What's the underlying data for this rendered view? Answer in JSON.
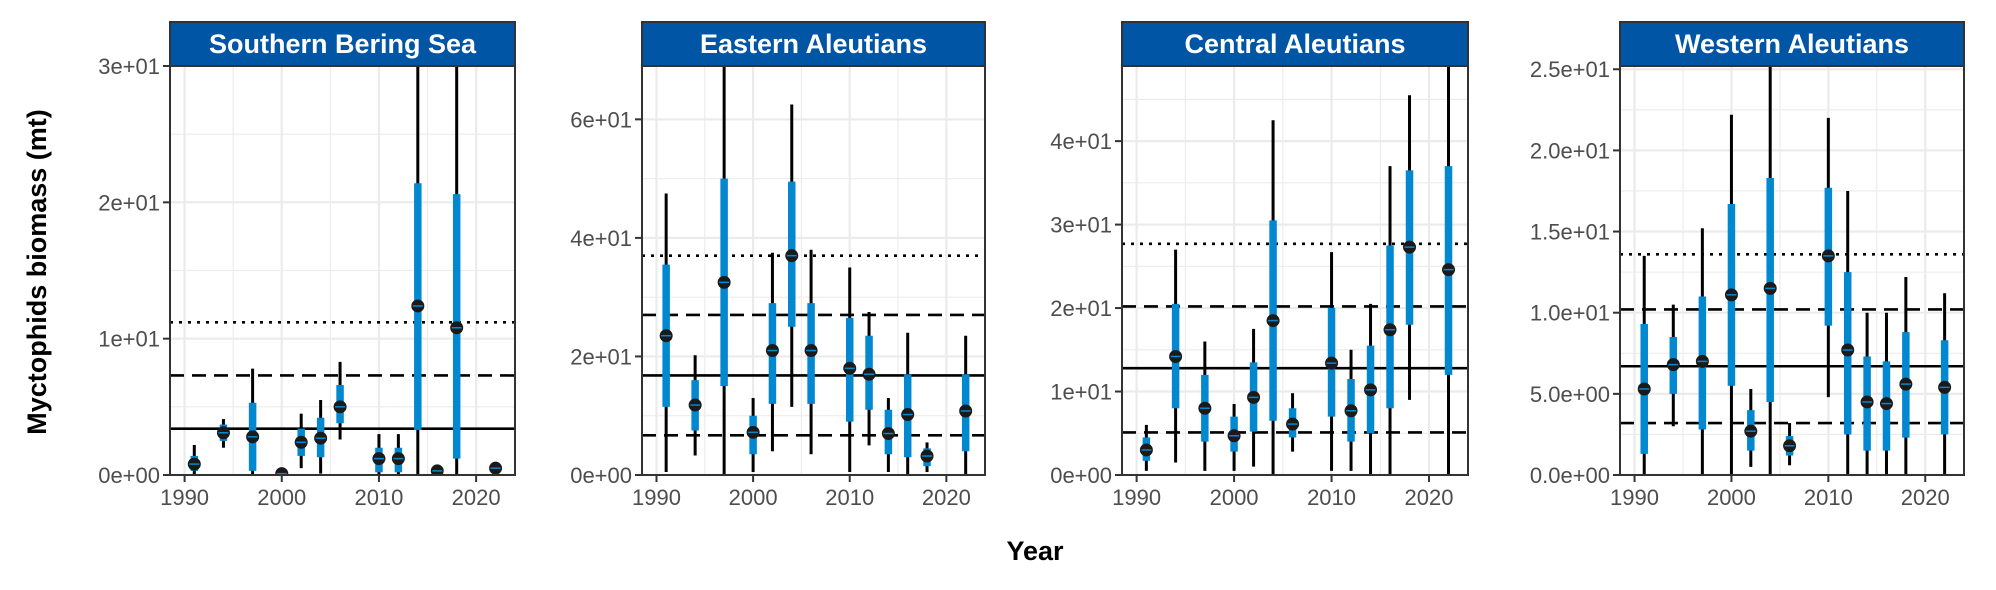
{
  "figure": {
    "ylabel": "Myctophids biomass (mt)",
    "xlabel": "Year"
  },
  "colors": {
    "strip_bg": "#0055A4",
    "strip_text": "#ffffff",
    "inner_interval": "#0288D1",
    "outer_interval": "#000000",
    "point": "#1a1a1a",
    "grid": "#EBEBEB",
    "panel_border": "#333333"
  },
  "chart_data": [
    {
      "type": "scatter",
      "title": "Southern Bering Sea",
      "xlim": [
        1988.5,
        2024
      ],
      "ylim": [
        0,
        30
      ],
      "xticks": [
        1990,
        2000,
        2010,
        2020
      ],
      "xtick_labels": [
        "1990",
        "2000",
        "2010",
        "2020"
      ],
      "yticks": [
        0,
        10,
        20,
        30
      ],
      "ytick_labels": [
        "0e+00",
        "1e+01",
        "2e+01",
        "3e+01"
      ],
      "hlines": {
        "solid": 3.4,
        "dashed": 7.3,
        "dotted": 11.2
      },
      "points": [
        {
          "year": 1991,
          "value": 0.8,
          "inner": [
            0.3,
            1.4
          ],
          "outer": [
            0.0,
            2.2
          ]
        },
        {
          "year": 1994,
          "value": 3.1,
          "inner": [
            2.5,
            3.7
          ],
          "outer": [
            2.0,
            4.1
          ]
        },
        {
          "year": 1997,
          "value": 2.8,
          "inner": [
            0.3,
            5.3
          ],
          "outer": [
            0.0,
            7.8
          ]
        },
        {
          "year": 2000,
          "value": 0.1,
          "inner": [
            0.0,
            0.2
          ],
          "outer": [
            0.0,
            0.3
          ]
        },
        {
          "year": 2002,
          "value": 2.4,
          "inner": [
            1.4,
            3.4
          ],
          "outer": [
            0.5,
            4.5
          ]
        },
        {
          "year": 2004,
          "value": 2.7,
          "inner": [
            1.3,
            4.2
          ],
          "outer": [
            0.1,
            5.5
          ]
        },
        {
          "year": 2006,
          "value": 5.0,
          "inner": [
            3.8,
            6.6
          ],
          "outer": [
            2.6,
            8.3
          ]
        },
        {
          "year": 2010,
          "value": 1.2,
          "inner": [
            0.2,
            2.0
          ],
          "outer": [
            0.0,
            3.0
          ]
        },
        {
          "year": 2012,
          "value": 1.2,
          "inner": [
            0.2,
            2.0
          ],
          "outer": [
            0.0,
            3.0
          ]
        },
        {
          "year": 2014,
          "value": 12.4,
          "inner": [
            3.3,
            21.4
          ],
          "outer": [
            0.0,
            30.0
          ]
        },
        {
          "year": 2016,
          "value": 0.3,
          "inner": [
            0.1,
            0.5
          ],
          "outer": [
            0.0,
            0.6
          ]
        },
        {
          "year": 2018,
          "value": 10.8,
          "inner": [
            1.2,
            20.6
          ],
          "outer": [
            0.0,
            30.0
          ]
        },
        {
          "year": 2022,
          "value": 0.5,
          "inner": [
            0.3,
            0.7
          ],
          "outer": [
            0.2,
            0.8
          ]
        }
      ]
    },
    {
      "type": "scatter",
      "title": "Eastern Aleutians",
      "xlim": [
        1988.5,
        2024
      ],
      "ylim": [
        0,
        69
      ],
      "xticks": [
        1990,
        2000,
        2010,
        2020
      ],
      "xtick_labels": [
        "1990",
        "2000",
        "2010",
        "2020"
      ],
      "yticks": [
        0,
        20,
        40,
        60
      ],
      "ytick_labels": [
        "0e+00",
        "2e+01",
        "4e+01",
        "6e+01"
      ],
      "hlines": {
        "solid": 16.8,
        "dashed_high": 27.0,
        "dashed_low": 6.7,
        "dotted": 37.0
      },
      "points": [
        {
          "year": 1991,
          "value": 23.5,
          "inner": [
            11.5,
            35.5
          ],
          "outer": [
            0.5,
            47.5
          ]
        },
        {
          "year": 1994,
          "value": 11.8,
          "inner": [
            7.5,
            16.0
          ],
          "outer": [
            3.3,
            20.2
          ]
        },
        {
          "year": 1997,
          "value": 32.5,
          "inner": [
            15.0,
            50.0
          ],
          "outer": [
            0.0,
            69.0
          ]
        },
        {
          "year": 2000,
          "value": 7.2,
          "inner": [
            3.5,
            10.0
          ],
          "outer": [
            0.5,
            13.0
          ]
        },
        {
          "year": 2002,
          "value": 21.0,
          "inner": [
            12.0,
            29.0
          ],
          "outer": [
            4.0,
            37.5
          ]
        },
        {
          "year": 2004,
          "value": 37.0,
          "inner": [
            25.0,
            49.5
          ],
          "outer": [
            11.5,
            62.5
          ]
        },
        {
          "year": 2006,
          "value": 21.0,
          "inner": [
            12.0,
            29.0
          ],
          "outer": [
            3.5,
            38.0
          ]
        },
        {
          "year": 2010,
          "value": 18.0,
          "inner": [
            9.0,
            26.5
          ],
          "outer": [
            0.5,
            35.0
          ]
        },
        {
          "year": 2012,
          "value": 17.0,
          "inner": [
            11.0,
            23.5
          ],
          "outer": [
            5.0,
            27.5
          ]
        },
        {
          "year": 2014,
          "value": 7.0,
          "inner": [
            3.5,
            11.0
          ],
          "outer": [
            0.5,
            13.0
          ]
        },
        {
          "year": 2016,
          "value": 10.2,
          "inner": [
            3.0,
            17.0
          ],
          "outer": [
            0.0,
            24.0
          ]
        },
        {
          "year": 2018,
          "value": 3.2,
          "inner": [
            1.5,
            4.5
          ],
          "outer": [
            0.5,
            5.5
          ]
        },
        {
          "year": 2022,
          "value": 10.8,
          "inner": [
            4.0,
            17.0
          ],
          "outer": [
            0.0,
            23.5
          ]
        }
      ]
    },
    {
      "type": "scatter",
      "title": "Central Aleutians",
      "xlim": [
        1988.5,
        2024
      ],
      "ylim": [
        0,
        49
      ],
      "xticks": [
        1990,
        2000,
        2010,
        2020
      ],
      "xtick_labels": [
        "1990",
        "2000",
        "2010",
        "2020"
      ],
      "yticks": [
        0,
        10,
        20,
        30,
        40
      ],
      "ytick_labels": [
        "0e+00",
        "1e+01",
        "2e+01",
        "3e+01",
        "4e+01"
      ],
      "hlines": {
        "solid": 12.8,
        "dashed_high": 20.2,
        "dashed_low": 5.1,
        "dotted": 27.7
      },
      "points": [
        {
          "year": 1991,
          "value": 3.0,
          "inner": [
            1.7,
            4.5
          ],
          "outer": [
            0.5,
            6.0
          ]
        },
        {
          "year": 1994,
          "value": 14.2,
          "inner": [
            8.0,
            20.5
          ],
          "outer": [
            1.5,
            27.0
          ]
        },
        {
          "year": 1997,
          "value": 8.0,
          "inner": [
            4.0,
            12.0
          ],
          "outer": [
            0.5,
            16.0
          ]
        },
        {
          "year": 2000,
          "value": 4.7,
          "inner": [
            2.8,
            7.0
          ],
          "outer": [
            0.5,
            8.5
          ]
        },
        {
          "year": 2002,
          "value": 9.3,
          "inner": [
            5.2,
            13.5
          ],
          "outer": [
            1.0,
            17.5
          ]
        },
        {
          "year": 2004,
          "value": 18.5,
          "inner": [
            6.5,
            30.5
          ],
          "outer": [
            0.0,
            42.5
          ]
        },
        {
          "year": 2006,
          "value": 6.1,
          "inner": [
            4.5,
            8.0
          ],
          "outer": [
            2.8,
            9.8
          ]
        },
        {
          "year": 2010,
          "value": 13.4,
          "inner": [
            7.0,
            20.0
          ],
          "outer": [
            0.5,
            26.7
          ]
        },
        {
          "year": 2012,
          "value": 7.7,
          "inner": [
            4.0,
            11.5
          ],
          "outer": [
            0.5,
            15.0
          ]
        },
        {
          "year": 2014,
          "value": 10.2,
          "inner": [
            5.0,
            15.5
          ],
          "outer": [
            0.0,
            20.5
          ]
        },
        {
          "year": 2016,
          "value": 17.4,
          "inner": [
            8.0,
            27.5
          ],
          "outer": [
            0.0,
            37.0
          ]
        },
        {
          "year": 2018,
          "value": 27.3,
          "inner": [
            18.0,
            36.5
          ],
          "outer": [
            9.0,
            45.5
          ]
        },
        {
          "year": 2022,
          "value": 24.6,
          "inner": [
            12.0,
            37.0
          ],
          "outer": [
            0.0,
            49.0
          ]
        }
      ]
    },
    {
      "type": "scatter",
      "title": "Western Aleutians",
      "xlim": [
        1988.5,
        2024
      ],
      "ylim": [
        0,
        25.2
      ],
      "xticks": [
        1990,
        2000,
        2010,
        2020
      ],
      "xtick_labels": [
        "1990",
        "2000",
        "2010",
        "2020"
      ],
      "yticks": [
        0,
        5,
        10,
        15,
        20,
        25
      ],
      "ytick_labels": [
        "0.0e+00",
        "5.0e+00",
        "1.0e+01",
        "1.5e+01",
        "2.0e+01",
        "2.5e+01"
      ],
      "hlines": {
        "solid": 6.7,
        "dashed_high": 10.2,
        "dashed_low": 3.2,
        "dotted": 13.6
      },
      "points": [
        {
          "year": 1991,
          "value": 5.3,
          "inner": [
            1.3,
            9.3
          ],
          "outer": [
            0.0,
            13.5
          ]
        },
        {
          "year": 1994,
          "value": 6.8,
          "inner": [
            5.0,
            8.5
          ],
          "outer": [
            3.0,
            10.5
          ]
        },
        {
          "year": 1997,
          "value": 7.0,
          "inner": [
            2.8,
            11.0
          ],
          "outer": [
            0.0,
            15.2
          ]
        },
        {
          "year": 2000,
          "value": 11.1,
          "inner": [
            5.5,
            16.7
          ],
          "outer": [
            0.0,
            22.2
          ]
        },
        {
          "year": 2002,
          "value": 2.7,
          "inner": [
            1.5,
            4.0
          ],
          "outer": [
            0.5,
            5.3
          ]
        },
        {
          "year": 2004,
          "value": 11.5,
          "inner": [
            4.5,
            18.3
          ],
          "outer": [
            0.0,
            25.2
          ]
        },
        {
          "year": 2006,
          "value": 1.8,
          "inner": [
            1.2,
            2.4
          ],
          "outer": [
            0.6,
            3.2
          ]
        },
        {
          "year": 2010,
          "value": 13.5,
          "inner": [
            9.2,
            17.7
          ],
          "outer": [
            4.8,
            22.0
          ]
        },
        {
          "year": 2012,
          "value": 7.7,
          "inner": [
            2.5,
            12.5
          ],
          "outer": [
            0.0,
            17.5
          ]
        },
        {
          "year": 2014,
          "value": 4.5,
          "inner": [
            1.5,
            7.3
          ],
          "outer": [
            0.0,
            10.0
          ]
        },
        {
          "year": 2016,
          "value": 4.4,
          "inner": [
            1.5,
            7.0
          ],
          "outer": [
            0.0,
            10.0
          ]
        },
        {
          "year": 2018,
          "value": 5.6,
          "inner": [
            2.3,
            8.8
          ],
          "outer": [
            0.0,
            12.2
          ]
        },
        {
          "year": 2022,
          "value": 5.4,
          "inner": [
            2.5,
            8.3
          ],
          "outer": [
            0.0,
            11.2
          ]
        }
      ]
    }
  ]
}
